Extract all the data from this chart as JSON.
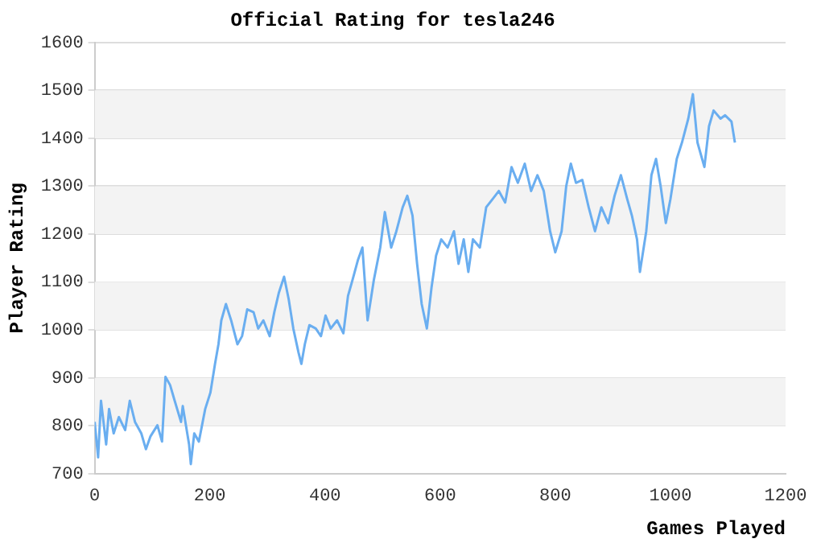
{
  "chart_data": {
    "type": "line",
    "title": "Official Rating for tesla246",
    "xlabel": "Games Played",
    "ylabel": "Player Rating",
    "x": [
      0,
      6,
      11,
      20,
      25,
      33,
      42,
      53,
      61,
      70,
      81,
      89,
      97,
      109,
      117,
      123,
      131,
      139,
      150,
      153,
      164,
      167,
      173,
      181,
      192,
      201,
      209,
      215,
      220,
      228,
      237,
      248,
      256,
      265,
      276,
      284,
      293,
      304,
      312,
      320,
      329,
      337,
      345,
      354,
      359,
      365,
      373,
      384,
      393,
      401,
      410,
      421,
      432,
      440,
      448,
      457,
      465,
      474,
      485,
      496,
      504,
      515,
      524,
      535,
      543,
      552,
      560,
      568,
      577,
      585,
      593,
      602,
      613,
      624,
      632,
      641,
      649,
      657,
      669,
      680,
      691,
      702,
      713,
      724,
      735,
      747,
      758,
      769,
      780,
      791,
      800,
      811,
      819,
      827,
      836,
      847,
      858,
      869,
      880,
      892,
      903,
      914,
      925,
      933,
      942,
      947,
      958,
      967,
      975,
      983,
      992,
      1000,
      1011,
      1020,
      1031,
      1039,
      1047,
      1059,
      1067,
      1075,
      1087,
      1095,
      1106,
      1112
    ],
    "series": [
      {
        "color": "#6aaef0",
        "values": [
          808,
          734,
          852,
          761,
          835,
          784,
          818,
          791,
          852,
          808,
          784,
          751,
          778,
          801,
          767,
          902,
          885,
          852,
          808,
          841,
          761,
          720,
          784,
          767,
          835,
          869,
          929,
          970,
          1020,
          1054,
          1020,
          970,
          987,
          1043,
          1037,
          1003,
          1020,
          987,
          1037,
          1078,
          1111,
          1064,
          1003,
          953,
          929,
          970,
          1010,
          1003,
          987,
          1030,
          1003,
          1020,
          993,
          1071,
          1105,
          1145,
          1172,
          1020,
          1105,
          1172,
          1246,
          1172,
          1206,
          1256,
          1280,
          1239,
          1138,
          1054,
          1003,
          1088,
          1155,
          1189,
          1172,
          1206,
          1138,
          1189,
          1121,
          1189,
          1172,
          1256,
          1273,
          1290,
          1266,
          1340,
          1307,
          1347,
          1290,
          1323,
          1290,
          1206,
          1162,
          1206,
          1300,
          1347,
          1307,
          1313,
          1256,
          1206,
          1256,
          1223,
          1280,
          1323,
          1273,
          1239,
          1189,
          1121,
          1206,
          1323,
          1357,
          1300,
          1223,
          1273,
          1357,
          1391,
          1441,
          1492,
          1391,
          1340,
          1425,
          1458,
          1441,
          1448,
          1435,
          1391
        ]
      }
    ],
    "xlim": [
      0,
      1200
    ],
    "xticks": [
      0,
      200,
      400,
      600,
      800,
      1000,
      1200
    ],
    "ylim": [
      700,
      1600
    ],
    "yticks": [
      700,
      800,
      900,
      1000,
      1100,
      1200,
      1300,
      1400,
      1500,
      1600
    ],
    "grid": "y",
    "marker": "none",
    "line_style": "solid"
  }
}
